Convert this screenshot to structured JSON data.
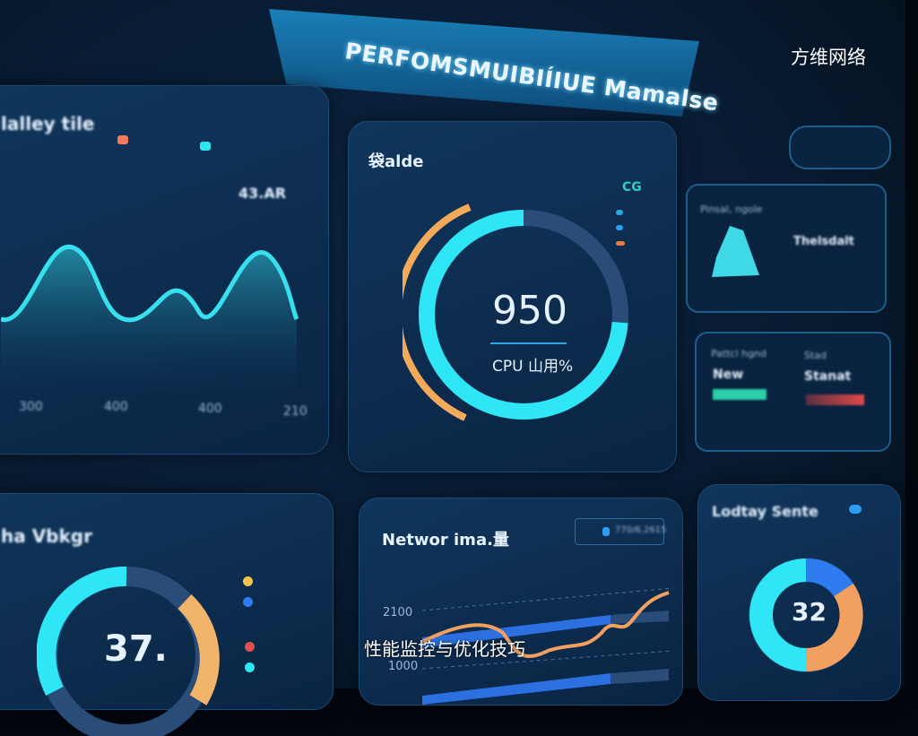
{
  "header": {
    "title": "PERFOMSMUIBIÍIUE  Mamalse",
    "watermark": "方维网络"
  },
  "caption": "性能监控与优化技巧",
  "left_top_panel": {
    "title": "lalley tile",
    "value": "43.AR",
    "axis_labels": [
      "300",
      "400",
      "400",
      "210"
    ],
    "legend_colors": [
      "#f07a5a",
      "#2ee6f0"
    ]
  },
  "cpu_panel": {
    "title": "袋alde",
    "value": "950",
    "label": "CPU 山用%",
    "badge": "CG",
    "ring_colors": {
      "primary": "#2ee6f6",
      "secondary": "#f2a95a",
      "track": "#2a4c78"
    }
  },
  "right_top_card": {
    "label": "Pinsal, ngole",
    "value": "Thelsdalt"
  },
  "right_mid_card": {
    "label_left": "Pattcl hgnd",
    "value_left": "New",
    "label_right": "Stad",
    "value_right": "Stanat"
  },
  "network_panel": {
    "title": "Networ ima.量",
    "y_labels": [
      "2100",
      "1000"
    ],
    "legend": "770/6.2615"
  },
  "left_bottom_panel": {
    "title": "ha Vbkgr",
    "value": "37."
  },
  "right_bottom_panel": {
    "title": "Lodtay Sente",
    "value": "32"
  }
}
